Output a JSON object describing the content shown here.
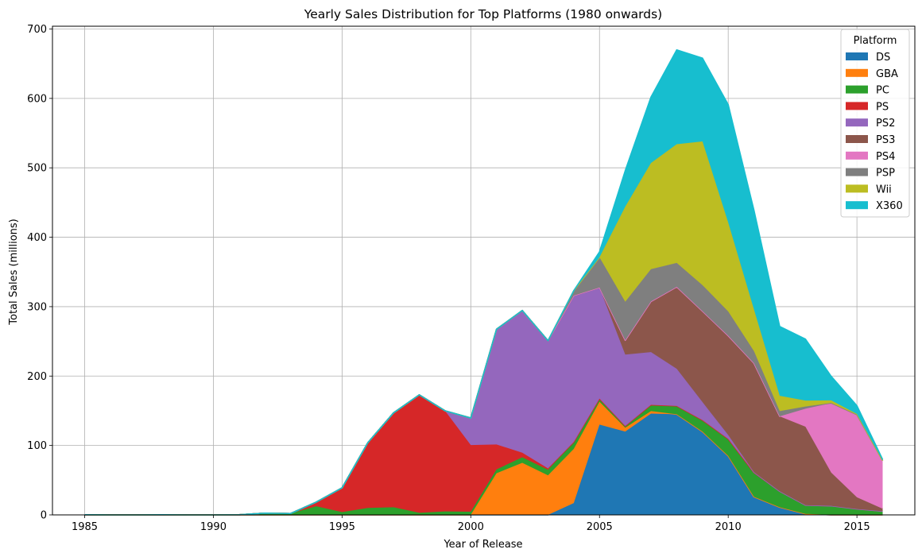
{
  "chart_data": {
    "type": "area",
    "stacked": true,
    "title": "Yearly Sales Distribution for Top Platforms (1980 onwards)",
    "xlabel": "Year of Release",
    "ylabel": "Total Sales (millions)",
    "xlim": [
      1983.75,
      2017.25
    ],
    "ylim": [
      0,
      704
    ],
    "xticks": [
      1985,
      1990,
      1995,
      2000,
      2005,
      2010,
      2015
    ],
    "yticks": [
      0,
      100,
      200,
      300,
      400,
      500,
      600,
      700
    ],
    "grid": true,
    "legend": {
      "title": "Platform",
      "position": "top-right"
    },
    "x": [
      1985,
      1986,
      1987,
      1988,
      1989,
      1990,
      1991,
      1992,
      1993,
      1994,
      1995,
      1996,
      1997,
      1998,
      1999,
      2000,
      2001,
      2002,
      2003,
      2004,
      2005,
      2006,
      2007,
      2008,
      2009,
      2010,
      2011,
      2012,
      2013,
      2014,
      2015,
      2016
    ],
    "series": [
      {
        "name": "DS",
        "color": "#1f77b4",
        "values": [
          0,
          0,
          0,
          0,
          0,
          0,
          0,
          0,
          0,
          0,
          0,
          0,
          0,
          0,
          0,
          0,
          0,
          0,
          0,
          17,
          130,
          120,
          146,
          145,
          120,
          85,
          26,
          11,
          1.5,
          0,
          0,
          0
        ]
      },
      {
        "name": "GBA",
        "color": "#ff7f0e",
        "values": [
          0,
          0,
          0,
          0,
          0,
          0,
          0,
          0,
          0,
          0,
          0,
          0,
          0,
          0,
          0,
          0.1,
          60,
          75,
          57,
          78,
          33,
          5.5,
          3.5,
          0,
          0,
          0,
          0,
          0,
          0,
          0,
          0,
          0
        ]
      },
      {
        "name": "PC",
        "color": "#2ca02c",
        "values": [
          0.2,
          0,
          0,
          0.2,
          0,
          0,
          0.2,
          2.5,
          2,
          12.5,
          4,
          10,
          11,
          3,
          5,
          4.5,
          5.5,
          8,
          8,
          10,
          4.5,
          2.5,
          9,
          12,
          16.5,
          24.5,
          35,
          23,
          12.5,
          13,
          8.5,
          5.3
        ]
      },
      {
        "name": "PS",
        "color": "#d62728",
        "values": [
          0,
          0,
          0,
          0,
          0,
          0,
          0,
          0,
          0,
          6,
          35,
          94,
          136,
          170,
          145,
          96,
          36,
          6.5,
          2,
          0,
          0,
          0,
          0,
          0,
          0,
          0,
          0,
          0,
          0,
          0,
          0,
          0
        ]
      },
      {
        "name": "PS2",
        "color": "#9467bd",
        "values": [
          0,
          0,
          0,
          0,
          0,
          0,
          0,
          0,
          0,
          0,
          0,
          0,
          0,
          0,
          0,
          39,
          166,
          205,
          184,
          211,
          160,
          103,
          76,
          53.5,
          26,
          5.6,
          0.5,
          0,
          0,
          0,
          0,
          0
        ]
      },
      {
        "name": "PS3",
        "color": "#8c564b",
        "values": [
          0,
          0,
          0,
          0,
          0,
          0,
          0,
          0,
          0,
          0,
          0,
          0,
          0,
          0,
          0,
          0,
          0,
          0,
          0,
          0,
          0,
          20.5,
          73,
          118,
          131,
          143,
          157,
          108,
          113,
          48,
          16.8,
          3.6
        ]
      },
      {
        "name": "PS4",
        "color": "#e377c2",
        "values": [
          0,
          0,
          0,
          0,
          0,
          0,
          0,
          0,
          0,
          0,
          0,
          0,
          0,
          0,
          0,
          0,
          0,
          0,
          0,
          0,
          0,
          0,
          0,
          0,
          0,
          0,
          0,
          0,
          26,
          100,
          118.9,
          69.2
        ]
      },
      {
        "name": "PSP",
        "color": "#7f7f7f",
        "values": [
          0,
          0,
          0,
          0,
          0,
          0,
          0,
          0,
          0,
          0,
          0,
          0,
          0,
          0,
          0,
          0,
          0,
          0,
          0,
          7,
          43.5,
          55.5,
          46.5,
          34.5,
          37.5,
          35,
          17.5,
          7.5,
          3.1,
          0.2,
          0.1,
          0
        ]
      },
      {
        "name": "Wii",
        "color": "#bcbd22",
        "values": [
          0,
          0,
          0,
          0,
          0,
          0,
          0,
          0,
          0,
          0,
          0,
          0,
          0,
          0,
          0,
          0,
          0,
          0,
          0,
          0,
          0,
          137,
          153,
          171,
          207,
          128,
          60,
          22,
          8.6,
          3.8,
          1.1,
          0.2
        ]
      },
      {
        "name": "X360",
        "color": "#17becf",
        "values": [
          0,
          0,
          0,
          0,
          0,
          0,
          0,
          0,
          0,
          0,
          0,
          0,
          0,
          0,
          0,
          0,
          0,
          0,
          0,
          0,
          8,
          52,
          95,
          136,
          120,
          170,
          143,
          100,
          88.6,
          34.7,
          11.9,
          1.5
        ]
      }
    ]
  }
}
